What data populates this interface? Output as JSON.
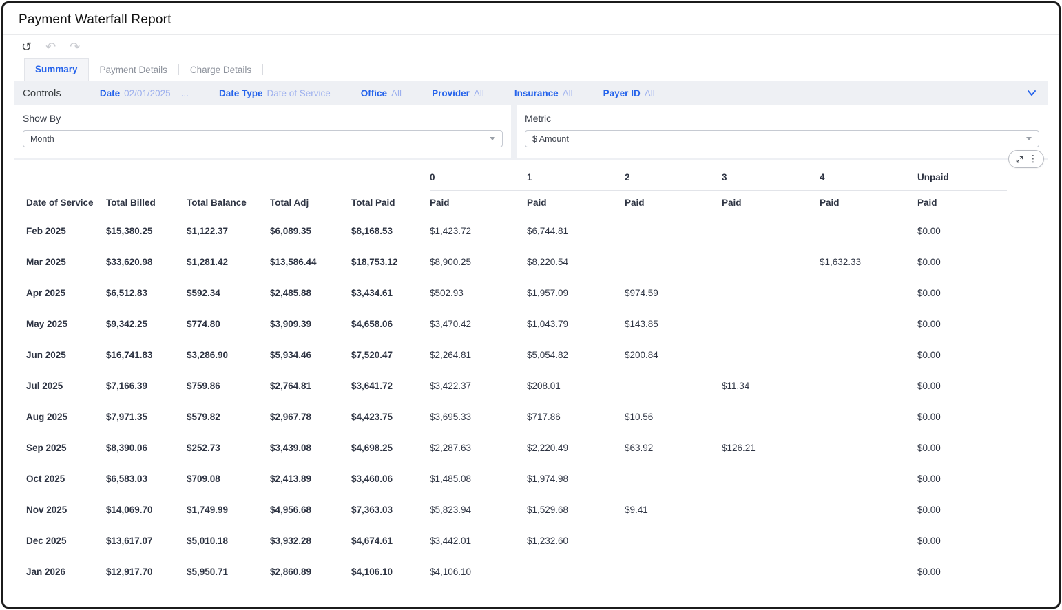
{
  "window": {
    "title": "Payment Waterfall Report"
  },
  "toolbar": {
    "refresh": "↺",
    "undo": "↶",
    "redo": "↷"
  },
  "tabs": [
    {
      "label": "Summary",
      "active": true
    },
    {
      "label": "Payment Details",
      "active": false
    },
    {
      "label": "Charge Details",
      "active": false
    }
  ],
  "controls": {
    "label": "Controls",
    "filters": [
      {
        "name": "Date",
        "value": "02/01/2025 – ..."
      },
      {
        "name": "Date Type",
        "value": "Date of Service"
      },
      {
        "name": "Office",
        "value": "All"
      },
      {
        "name": "Provider",
        "value": "All"
      },
      {
        "name": "Insurance",
        "value": "All"
      },
      {
        "name": "Payer ID",
        "value": "All"
      }
    ]
  },
  "show_by": {
    "label": "Show By",
    "value": "Month"
  },
  "metric": {
    "label": "Metric",
    "value": "$ Amount"
  },
  "colors": {
    "accent_blue": "#2563eb",
    "muted_blue": "#9db0ee",
    "text_dark": "#2e3443",
    "controls_bg": "#eef0f4"
  },
  "table": {
    "group_headers": [
      "0",
      "1",
      "2",
      "3",
      "4",
      "Unpaid"
    ],
    "columns": [
      "Date of Service",
      "Total Billed",
      "Total Balance",
      "Total Adj",
      "Total Paid",
      "Paid",
      "Paid",
      "Paid",
      "Paid",
      "Paid",
      "Paid"
    ],
    "rows": [
      [
        "Feb 2025",
        "$15,380.25",
        "$1,122.37",
        "$6,089.35",
        "$8,168.53",
        "$1,423.72",
        "$6,744.81",
        "",
        "",
        "",
        "$0.00"
      ],
      [
        "Mar 2025",
        "$33,620.98",
        "$1,281.42",
        "$13,586.44",
        "$18,753.12",
        "$8,900.25",
        "$8,220.54",
        "",
        "",
        "$1,632.33",
        "$0.00"
      ],
      [
        "Apr 2025",
        "$6,512.83",
        "$592.34",
        "$2,485.88",
        "$3,434.61",
        "$502.93",
        "$1,957.09",
        "$974.59",
        "",
        "",
        "$0.00"
      ],
      [
        "May 2025",
        "$9,342.25",
        "$774.80",
        "$3,909.39",
        "$4,658.06",
        "$3,470.42",
        "$1,043.79",
        "$143.85",
        "",
        "",
        "$0.00"
      ],
      [
        "Jun 2025",
        "$16,741.83",
        "$3,286.90",
        "$5,934.46",
        "$7,520.47",
        "$2,264.81",
        "$5,054.82",
        "$200.84",
        "",
        "",
        "$0.00"
      ],
      [
        "Jul 2025",
        "$7,166.39",
        "$759.86",
        "$2,764.81",
        "$3,641.72",
        "$3,422.37",
        "$208.01",
        "",
        "$11.34",
        "",
        "$0.00"
      ],
      [
        "Aug 2025",
        "$7,971.35",
        "$579.82",
        "$2,967.78",
        "$4,423.75",
        "$3,695.33",
        "$717.86",
        "$10.56",
        "",
        "",
        "$0.00"
      ],
      [
        "Sep 2025",
        "$8,390.06",
        "$252.73",
        "$3,439.08",
        "$4,698.25",
        "$2,287.63",
        "$2,220.49",
        "$63.92",
        "$126.21",
        "",
        "$0.00"
      ],
      [
        "Oct 2025",
        "$6,583.03",
        "$709.08",
        "$2,413.89",
        "$3,460.06",
        "$1,485.08",
        "$1,974.98",
        "",
        "",
        "",
        "$0.00"
      ],
      [
        "Nov 2025",
        "$14,069.70",
        "$1,749.99",
        "$4,956.68",
        "$7,363.03",
        "$5,823.94",
        "$1,529.68",
        "$9.41",
        "",
        "",
        "$0.00"
      ],
      [
        "Dec 2025",
        "$13,617.07",
        "$5,010.18",
        "$3,932.28",
        "$4,674.61",
        "$3,442.01",
        "$1,232.60",
        "",
        "",
        "",
        "$0.00"
      ],
      [
        "Jan 2026",
        "$12,917.70",
        "$5,950.71",
        "$2,860.89",
        "$4,106.10",
        "$4,106.10",
        "",
        "",
        "",
        "",
        "$0.00"
      ]
    ]
  }
}
